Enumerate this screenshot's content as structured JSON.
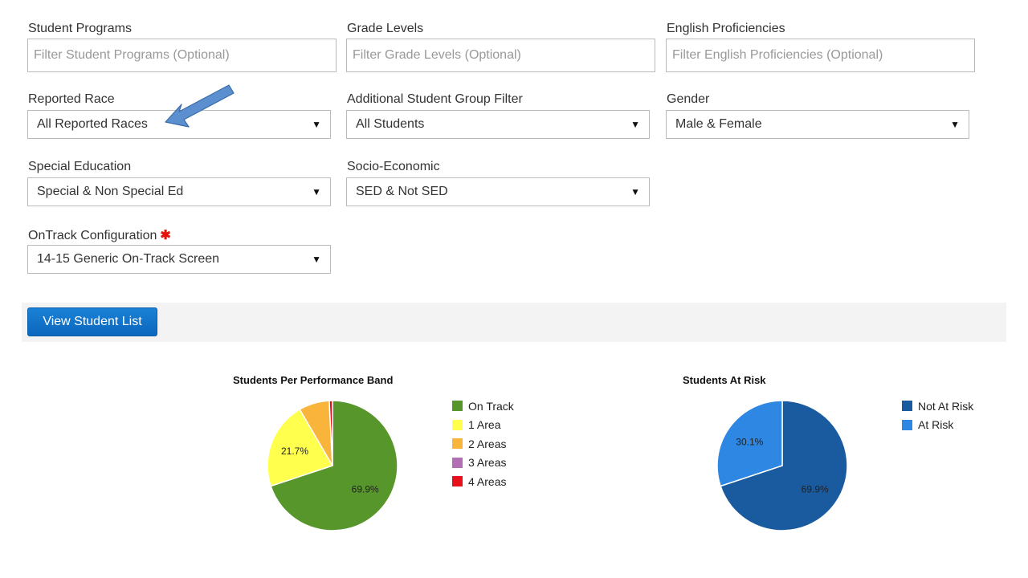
{
  "filters": {
    "student_programs": {
      "label": "Student Programs",
      "placeholder": "Filter Student Programs (Optional)"
    },
    "grade_levels": {
      "label": "Grade Levels",
      "placeholder": "Filter Grade Levels (Optional)"
    },
    "english_proficiencies": {
      "label": "English Proficiencies",
      "placeholder": "Filter English Proficiencies (Optional)"
    },
    "reported_race": {
      "label": "Reported Race",
      "value": "All Reported Races"
    },
    "additional_group": {
      "label": "Additional Student Group Filter",
      "value": "All Students"
    },
    "gender": {
      "label": "Gender",
      "value": "Male & Female"
    },
    "special_education": {
      "label": "Special Education",
      "value": "Special & Non Special Ed"
    },
    "socio_economic": {
      "label": "Socio-Economic",
      "value": "SED & Not SED"
    },
    "ontrack_configuration": {
      "label": "OnTrack Configuration",
      "required_marker": "✱",
      "value": "14-15 Generic On-Track Screen"
    }
  },
  "dropdown_arrow": "▼",
  "toolbar": {
    "view_student_list_label": "View Student List"
  },
  "annotation": {
    "arrow_color": "#5b8fd0"
  },
  "chart_data": [
    {
      "type": "pie",
      "title": "Students Per Performance Band",
      "series": [
        {
          "name": "On Track",
          "value": 69.9,
          "color": "#56962b",
          "label": "69.9%"
        },
        {
          "name": "1 Area",
          "value": 21.7,
          "color": "#ffff4d",
          "label": "21.7%"
        },
        {
          "name": "2 Areas",
          "value": 7.6,
          "color": "#f9b53b",
          "label": ""
        },
        {
          "name": "3 Areas",
          "value": 0.0,
          "color": "#b36eb4",
          "label": ""
        },
        {
          "name": "4 Areas",
          "value": 0.8,
          "color": "#e8101b",
          "label": ""
        }
      ]
    },
    {
      "type": "pie",
      "title": "Students At Risk",
      "series": [
        {
          "name": "Not At Risk",
          "value": 69.9,
          "color": "#1a5b9f",
          "label": "69.9%"
        },
        {
          "name": "At Risk",
          "value": 30.1,
          "color": "#2d87e3",
          "label": "30.1%"
        }
      ]
    }
  ]
}
